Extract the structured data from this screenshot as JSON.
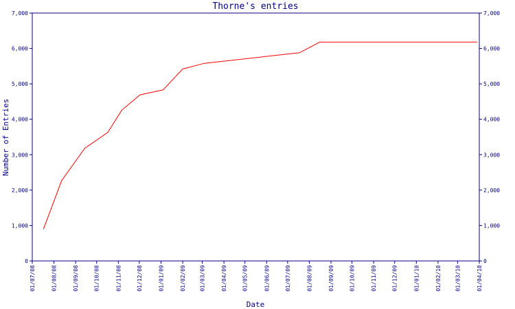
{
  "chart_data": {
    "type": "line",
    "title": "Thorne's entries",
    "xlabel": "Date",
    "ylabel": "Number of Entries",
    "ylim": [
      0,
      7000
    ],
    "yticks": [
      0,
      1000,
      2000,
      3000,
      4000,
      5000,
      6000,
      7000
    ],
    "ytick_labels": [
      "0",
      "1,000",
      "2,000",
      "3,000",
      "4,000",
      "5,000",
      "6,000",
      "7,000"
    ],
    "xlim": [
      "2008-07-01",
      "2010-04-01"
    ],
    "xtick_values": [
      "2008-07-01",
      "2008-08-01",
      "2008-09-01",
      "2008-10-01",
      "2008-11-01",
      "2008-12-01",
      "2009-01-01",
      "2009-02-01",
      "2009-03-01",
      "2009-04-01",
      "2009-05-01",
      "2009-06-01",
      "2009-07-01",
      "2009-08-01",
      "2009-09-01",
      "2009-10-01",
      "2009-11-01",
      "2009-12-01",
      "2010-01-01",
      "2010-02-01",
      "2010-03-01",
      "2010-04-01"
    ],
    "xtick_labels": [
      "01/07/08",
      "01/08/08",
      "01/09/08",
      "01/10/08",
      "01/11/08",
      "01/12/08",
      "01/01/09",
      "01/02/09",
      "01/03/09",
      "01/04/09",
      "01/05/09",
      "01/06/09",
      "01/07/09",
      "01/08/09",
      "01/09/09",
      "01/10/09",
      "01/11/09",
      "01/12/09",
      "01/01/10",
      "01/02/10",
      "01/03/10",
      "01/04/10"
    ],
    "right_axis": true,
    "grid": false,
    "line_color": "#ff0000",
    "axis_color": "#000080",
    "series": [
      {
        "x": [
          "2008-07-17",
          "2008-08-12",
          "2008-09-14",
          "2008-10-17",
          "2008-11-06",
          "2008-12-02",
          "2009-01-04",
          "2009-02-01",
          "2009-03-04",
          "2009-07-18",
          "2009-08-16",
          "2010-03-29"
        ],
        "y": [
          900,
          2270,
          3180,
          3630,
          4260,
          4690,
          4830,
          5420,
          5580,
          5880,
          6180,
          6180
        ]
      }
    ]
  }
}
